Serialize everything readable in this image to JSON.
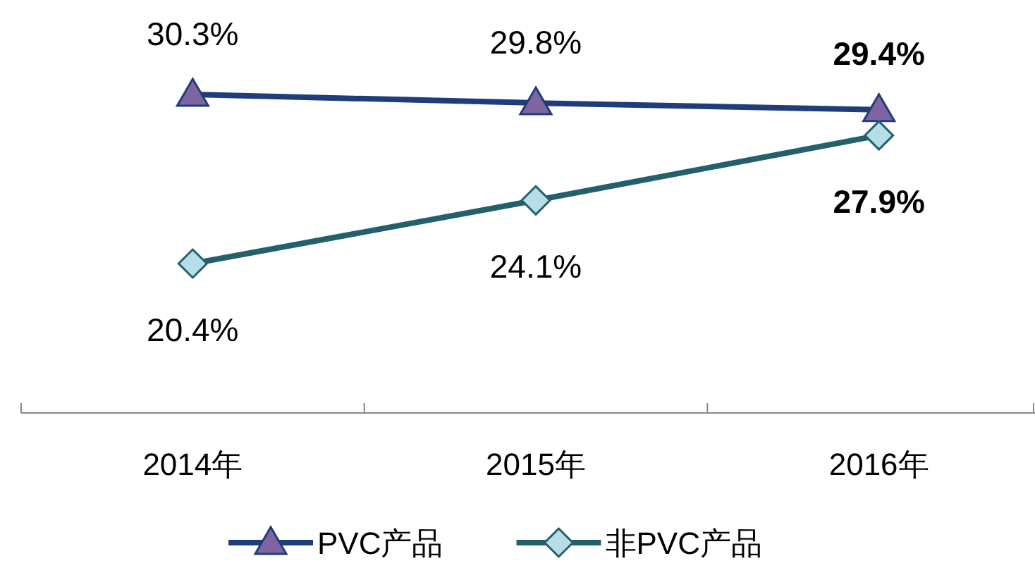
{
  "chart_data": {
    "type": "line",
    "categories": [
      "2014年",
      "2015年",
      "2016年"
    ],
    "series": [
      {
        "name": "PVC产品",
        "color": "#1f3d7a",
        "colors": [
          "#8064a2",
          "#8064a2",
          "#8064a2"
        ],
        "marker": "triangle",
        "values": [
          30.3,
          29.8,
          29.4
        ],
        "value_labels": [
          "30.3%",
          "29.8%",
          "29.4%"
        ]
      },
      {
        "name": "非PVC产品",
        "color": "#23606b",
        "colors": [
          "#b7dee8",
          "#b7dee8",
          "#b7dee8"
        ],
        "marker": "diamond",
        "values": [
          20.4,
          24.1,
          27.9
        ],
        "value_labels": [
          "20.4%",
          "24.1%",
          "27.9%"
        ]
      }
    ],
    "legend": "bottom",
    "grid": false
  }
}
